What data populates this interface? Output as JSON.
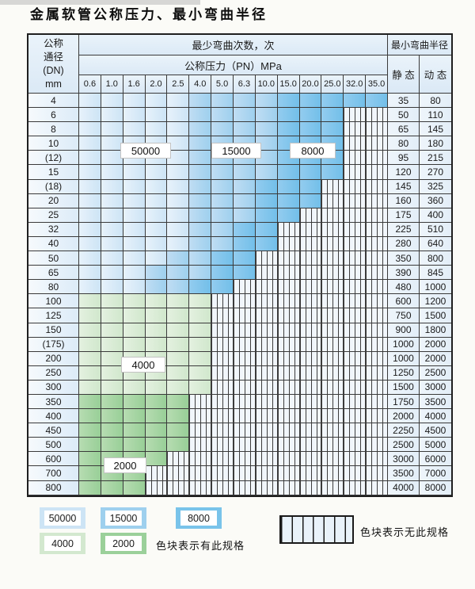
{
  "title": "金属软管公称压力、最小弯曲半径",
  "table": {
    "header": {
      "dn_label_lines": [
        "公称",
        "通径",
        "(DN)",
        "mm"
      ],
      "bend_cycles_label": "最少弯曲次数，次",
      "pressure_label": "公称压力（PN）MPa",
      "pressure_columns": [
        "0.6",
        "1.0",
        "1.6",
        "2.0",
        "2.5",
        "4.0",
        "5.0",
        "6.3",
        "10.0",
        "15.0",
        "20.0",
        "25.0",
        "32.0",
        "35.0"
      ],
      "radius_label": "最小弯曲半径",
      "static_label": "静 态",
      "dynamic_label": "动 态"
    },
    "rows": [
      {
        "dn": "4",
        "static": "35",
        "dynamic": "80",
        "palette": "blue",
        "light_end": 4,
        "med_end": 8,
        "end": 13
      },
      {
        "dn": "6",
        "static": "50",
        "dynamic": "110",
        "palette": "blue",
        "light_end": 4,
        "med_end": 8,
        "end": 11
      },
      {
        "dn": "8",
        "static": "65",
        "dynamic": "145",
        "palette": "blue",
        "light_end": 4,
        "med_end": 8,
        "end": 11
      },
      {
        "dn": "10",
        "static": "80",
        "dynamic": "180",
        "palette": "blue",
        "light_end": 4,
        "med_end": 8,
        "end": 11
      },
      {
        "dn": "(12)",
        "static": "95",
        "dynamic": "215",
        "palette": "blue",
        "light_end": 4,
        "med_end": 8,
        "end": 11
      },
      {
        "dn": "15",
        "static": "120",
        "dynamic": "270",
        "palette": "blue",
        "light_end": 4,
        "med_end": 8,
        "end": 11
      },
      {
        "dn": "(18)",
        "static": "145",
        "dynamic": "325",
        "palette": "blue",
        "light_end": 4,
        "med_end": 7,
        "end": 10
      },
      {
        "dn": "20",
        "static": "160",
        "dynamic": "360",
        "palette": "blue",
        "light_end": 4,
        "med_end": 7,
        "end": 10
      },
      {
        "dn": "25",
        "static": "175",
        "dynamic": "400",
        "palette": "blue",
        "light_end": 4,
        "med_end": 7,
        "end": 9
      },
      {
        "dn": "32",
        "static": "225",
        "dynamic": "510",
        "palette": "blue",
        "light_end": 4,
        "med_end": 6,
        "end": 8
      },
      {
        "dn": "40",
        "static": "280",
        "dynamic": "640",
        "palette": "blue",
        "light_end": 4,
        "med_end": 6,
        "end": 8
      },
      {
        "dn": "50",
        "static": "350",
        "dynamic": "800",
        "palette": "blue",
        "light_end": 3,
        "med_end": 5,
        "end": 7
      },
      {
        "dn": "65",
        "static": "390",
        "dynamic": "845",
        "palette": "blue",
        "light_end": 2,
        "med_end": 5,
        "end": 7
      },
      {
        "dn": "80",
        "static": "480",
        "dynamic": "1000",
        "palette": "blue",
        "light_end": 2,
        "med_end": 4,
        "end": 6
      },
      {
        "dn": "100",
        "static": "600",
        "dynamic": "1200",
        "palette": "green-light",
        "end": 5
      },
      {
        "dn": "125",
        "static": "750",
        "dynamic": "1500",
        "palette": "green-light",
        "end": 5
      },
      {
        "dn": "150",
        "static": "900",
        "dynamic": "1800",
        "palette": "green-light",
        "end": 5
      },
      {
        "dn": "(175)",
        "static": "1000",
        "dynamic": "2000",
        "palette": "green-light",
        "end": 5
      },
      {
        "dn": "200",
        "static": "1000",
        "dynamic": "2000",
        "palette": "green-light",
        "end": 5
      },
      {
        "dn": "250",
        "static": "1250",
        "dynamic": "2500",
        "palette": "green-light",
        "end": 5
      },
      {
        "dn": "300",
        "static": "1500",
        "dynamic": "3000",
        "palette": "green-light",
        "end": 5
      },
      {
        "dn": "350",
        "static": "1750",
        "dynamic": "3500",
        "palette": "green-dark",
        "end": 4
      },
      {
        "dn": "400",
        "static": "2000",
        "dynamic": "4000",
        "palette": "green-dark",
        "end": 4
      },
      {
        "dn": "450",
        "static": "2250",
        "dynamic": "4500",
        "palette": "green-dark",
        "end": 4
      },
      {
        "dn": "500",
        "static": "2500",
        "dynamic": "5000",
        "palette": "green-dark",
        "end": 4
      },
      {
        "dn": "600",
        "static": "3000",
        "dynamic": "6000",
        "palette": "green-dark",
        "end": 3
      },
      {
        "dn": "700",
        "static": "3500",
        "dynamic": "7000",
        "palette": "green-dark",
        "end": 2
      },
      {
        "dn": "800",
        "static": "4000",
        "dynamic": "8000",
        "palette": "green-dark",
        "end": 2
      }
    ],
    "zone_labels": [
      {
        "text": "50000"
      },
      {
        "text": "15000"
      },
      {
        "text": "8000"
      },
      {
        "text": "4000"
      },
      {
        "text": "2000"
      }
    ]
  },
  "legend": {
    "swatches": [
      {
        "label": "50000",
        "type": "blue-light"
      },
      {
        "label": "15000",
        "type": "blue-med"
      },
      {
        "label": "8000",
        "type": "blue-dark"
      },
      {
        "label": "4000",
        "type": "green-light"
      },
      {
        "label": "2000",
        "type": "green-dark"
      }
    ],
    "has_spec_note": "色块表示有此规格",
    "no_spec_note": "色块表示无此规格"
  },
  "colors": {
    "zone_50000": "#cde4f5",
    "zone_15000": "#9ed0ee",
    "zone_8000": "#79c3ea",
    "zone_4000": "#d3e8cf",
    "zone_2000": "#9bd09a",
    "grid_line": "#3a3a3a"
  },
  "chart_data": {
    "type": "table",
    "title": "金属软管公称压力、最小弯曲半径",
    "pressure_columns_MPa": [
      0.6,
      1.0,
      1.6,
      2.0,
      2.5,
      4.0,
      5.0,
      6.3,
      10.0,
      15.0,
      20.0,
      25.0,
      32.0,
      35.0
    ],
    "bend_count_legend": {
      "50000": "lightest blue",
      "15000": "medium blue",
      "8000": "dark blue",
      "4000": "light green",
      "2000": "medium green"
    },
    "rows_dn_static_dynamic_maxPN": [
      [
        "4",
        35,
        80,
        35.0
      ],
      [
        "6",
        50,
        110,
        25.0
      ],
      [
        "8",
        65,
        145,
        25.0
      ],
      [
        "10",
        80,
        180,
        25.0
      ],
      [
        "(12)",
        95,
        215,
        25.0
      ],
      [
        "15",
        120,
        270,
        25.0
      ],
      [
        "(18)",
        145,
        325,
        20.0
      ],
      [
        "20",
        160,
        360,
        20.0
      ],
      [
        "25",
        175,
        400,
        15.0
      ],
      [
        "32",
        225,
        510,
        10.0
      ],
      [
        "40",
        280,
        640,
        10.0
      ],
      [
        "50",
        350,
        800,
        6.3
      ],
      [
        "65",
        390,
        845,
        6.3
      ],
      [
        "80",
        480,
        1000,
        5.0
      ],
      [
        "100",
        600,
        1200,
        4.0
      ],
      [
        "125",
        750,
        1500,
        4.0
      ],
      [
        "150",
        900,
        1800,
        4.0
      ],
      [
        "(175)",
        1000,
        2000,
        4.0
      ],
      [
        "200",
        1000,
        2000,
        4.0
      ],
      [
        "250",
        1250,
        2500,
        4.0
      ],
      [
        "300",
        1500,
        3000,
        4.0
      ],
      [
        "350",
        1750,
        3500,
        2.5
      ],
      [
        "400",
        2000,
        4000,
        2.5
      ],
      [
        "450",
        2250,
        4500,
        2.5
      ],
      [
        "500",
        2500,
        5000,
        2.5
      ],
      [
        "600",
        3000,
        6000,
        2.0
      ],
      [
        "700",
        3500,
        7000,
        1.6
      ],
      [
        "800",
        4000,
        8000,
        1.6
      ]
    ]
  }
}
